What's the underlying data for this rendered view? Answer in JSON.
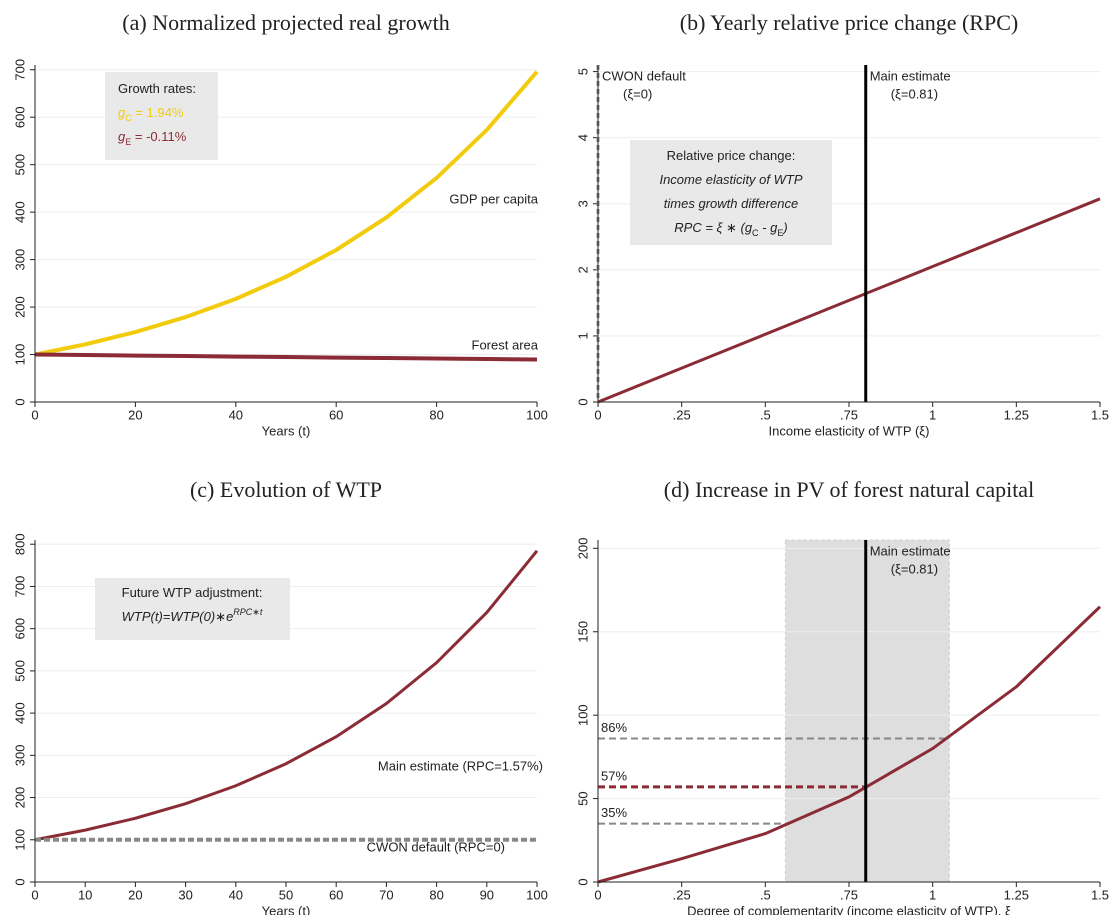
{
  "chart_data": [
    {
      "type": "line",
      "title": "(a) Normalized projected real growth",
      "xlabel": "Years (t)",
      "x": [
        0,
        10,
        20,
        30,
        40,
        50,
        60,
        70,
        80,
        90,
        100
      ],
      "xlim": [
        0,
        100
      ],
      "xticks": [
        0,
        20,
        40,
        60,
        80,
        100
      ],
      "ylim": [
        0,
        710
      ],
      "yticks": [
        0,
        100,
        200,
        300,
        400,
        500,
        600,
        700
      ],
      "grid": true,
      "series": [
        {
          "name": "GDP per capita",
          "color": "#f2cc0c",
          "width": 4,
          "dashed": false,
          "values": [
            100,
            121.4,
            147.4,
            178.9,
            217.3,
            263.8,
            320.3,
            388.8,
            472.1,
            573.2,
            695.9
          ]
        },
        {
          "name": "Forest area",
          "color": "#8b2b35",
          "width": 4,
          "dashed": false,
          "values": [
            100,
            98.9,
            97.8,
            96.8,
            95.7,
            94.7,
            93.6,
            92.6,
            91.6,
            90.6,
            89.6
          ]
        }
      ],
      "annotation": [
        {
          "color": "#222",
          "parts": [
            {
              "t": "Growth rates:"
            }
          ]
        },
        {
          "color": "#f2cc0c",
          "parts": [
            {
              "t": "g",
              "italic": true
            },
            {
              "t": "C",
              "sub": true
            },
            {
              "t": " =  1.94%"
            }
          ]
        },
        {
          "color": "#8b2b35",
          "parts": [
            {
              "t": "g",
              "italic": true
            },
            {
              "t": "E",
              "sub": true
            },
            {
              "t": " =  -0.11%"
            }
          ]
        }
      ]
    },
    {
      "type": "line",
      "title": "(b) Yearly relative price change (RPC)",
      "xlabel": "Income elasticity of WTP (ξ)",
      "x": [
        0,
        0.25,
        0.5,
        0.75,
        1,
        1.25,
        1.5
      ],
      "xlim": [
        0,
        1.5
      ],
      "xticks": [
        0,
        {
          "value": 0.25,
          "label": ".25"
        },
        {
          "value": 0.5,
          "label": ".5"
        },
        {
          "value": 0.75,
          "label": ".75"
        },
        1,
        1.25,
        1.5
      ],
      "ylim": [
        0,
        5.1
      ],
      "yticks": [
        0,
        1,
        2,
        3,
        4,
        5
      ],
      "grid": true,
      "series": [
        {
          "color": "#8b2b35",
          "width": 3,
          "dashed": false,
          "values": [
            0,
            0.5125,
            1.025,
            1.5375,
            2.05,
            2.5625,
            3.075
          ]
        }
      ],
      "vlines": [
        {
          "x": 0,
          "color": "#888888",
          "dashed": true,
          "label": [
            "CWON default",
            "(ξ=0)"
          ]
        },
        {
          "x": 0.8,
          "color": "#000000",
          "dashed": false,
          "label": [
            "Main estimate",
            "(ξ=0.81)"
          ]
        }
      ],
      "annotation": [
        {
          "color": "#222",
          "parts": [
            {
              "t": "Relative price change:"
            }
          ]
        },
        {
          "color": "#222",
          "parts": [
            {
              "t": "Income elasticity of WTP",
              "italic": true
            }
          ]
        },
        {
          "color": "#222",
          "parts": [
            {
              "t": "times growth difference",
              "italic": true
            }
          ]
        },
        {
          "color": "#222",
          "parts": [
            {
              "t": "RPC = ξ ∗ (g",
              "italic": true
            },
            {
              "t": "C",
              "sub": true
            },
            {
              "t": " - g",
              "italic": true
            },
            {
              "t": "E",
              "sub": true
            },
            {
              "t": ")",
              "italic": true
            }
          ]
        }
      ]
    },
    {
      "type": "line",
      "title": "(c) Evolution of WTP",
      "xlabel": "Years (t)",
      "x": [
        0,
        10,
        20,
        30,
        40,
        50,
        60,
        70,
        80,
        90,
        100
      ],
      "xlim": [
        0,
        100
      ],
      "xticks": [
        0,
        10,
        20,
        30,
        40,
        50,
        60,
        70,
        80,
        90,
        100
      ],
      "ylim": [
        0,
        810
      ],
      "yticks": [
        0,
        100,
        200,
        300,
        400,
        500,
        600,
        700,
        800
      ],
      "grid": true,
      "series": [
        {
          "name": "Main estimate (RPC=1.57%)",
          "color": "#8b2b35",
          "width": 3,
          "dashed": false,
          "values": [
            100,
            122.9,
            151.0,
            185.5,
            227.9,
            280.1,
            344.1,
            422.8,
            519.5,
            638.3,
            784.3
          ]
        },
        {
          "name": "CWON default (RPC=0)",
          "color": "#888888",
          "width": 4,
          "dashed": true,
          "values": [
            100,
            100,
            100,
            100,
            100,
            100,
            100,
            100,
            100,
            100,
            100
          ]
        }
      ],
      "annotation": [
        {
          "color": "#222",
          "parts": [
            {
              "t": "Future WTP adjustment:"
            }
          ]
        },
        {
          "color": "#222",
          "parts": [
            {
              "t": "WTP(t)=WTP(0)∗e",
              "italic": true
            },
            {
              "t": "RPC∗t",
              "sup": true,
              "italic": true
            }
          ]
        }
      ]
    },
    {
      "type": "line",
      "title": "(d) Increase in PV of forest natural capital",
      "xlabel": "Degree of complementarity (income elasticity of WTP), ξ",
      "x": [
        0,
        0.25,
        0.5,
        0.75,
        1,
        1.25,
        1.5
      ],
      "xlim": [
        0,
        1.5
      ],
      "xticks": [
        0,
        {
          "value": 0.25,
          "label": ".25"
        },
        {
          "value": 0.5,
          "label": ".5"
        },
        {
          "value": 0.75,
          "label": ".75"
        },
        1,
        1.25,
        1.5
      ],
      "ylim": [
        0,
        205
      ],
      "yticks": [
        0,
        50,
        100,
        150,
        200
      ],
      "grid": true,
      "series": [
        {
          "color": "#8b2b35",
          "width": 3,
          "dashed": false,
          "values": [
            0,
            14,
            29,
            51,
            80,
            117,
            165
          ]
        }
      ],
      "band": [
        0.56,
        1.05
      ],
      "vlines": [
        {
          "x": 0.8,
          "color": "#000000",
          "dashed": false,
          "label": [
            "Main estimate",
            "(ξ=0.81)"
          ]
        }
      ],
      "hlines": [
        {
          "value": 86,
          "label": "86%",
          "x_end": 1.05,
          "color": "#888888"
        },
        {
          "value": 57,
          "label": "57%",
          "x_end": 0.8,
          "color": "#8b2b35"
        },
        {
          "value": 35,
          "label": "35%",
          "x_end": 0.56,
          "color": "#888888"
        }
      ]
    }
  ]
}
